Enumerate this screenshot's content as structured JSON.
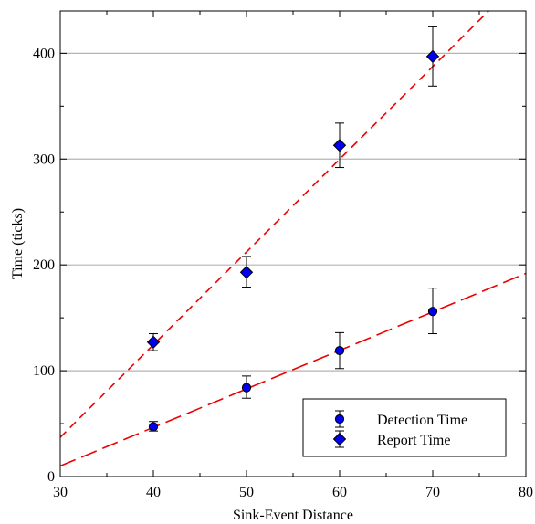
{
  "chart_data": {
    "type": "scatter",
    "title": "",
    "xlabel": "Sink-Event Distance",
    "ylabel": "Time (ticks)",
    "xlim": [
      30,
      80
    ],
    "ylim": [
      0,
      440
    ],
    "xticks": [
      30,
      40,
      50,
      60,
      70,
      80
    ],
    "yticks": [
      0,
      100,
      200,
      300,
      400
    ],
    "grid": "horizontal",
    "legend_position": "bottom-right",
    "series": [
      {
        "name": "Detection Time",
        "marker": "circle",
        "color": "#0000ee",
        "x": [
          40,
          50,
          60,
          70
        ],
        "y": [
          47,
          84,
          119,
          156
        ],
        "err_low": [
          43,
          74,
          102,
          135
        ],
        "err_high": [
          52,
          95,
          136,
          178
        ]
      },
      {
        "name": "Report Time",
        "marker": "diamond",
        "color": "#0000ee",
        "x": [
          40,
          50,
          60,
          70
        ],
        "y": [
          127,
          193,
          313,
          397
        ],
        "err_low": [
          119,
          179,
          292,
          369
        ],
        "err_high": [
          135,
          208,
          334,
          425
        ]
      }
    ],
    "fits": [
      {
        "series": "Detection Time",
        "x": [
          30,
          80
        ],
        "y": [
          10,
          192
        ],
        "color": "#ee0000",
        "dash": "long"
      },
      {
        "series": "Report Time",
        "x": [
          30,
          76
        ],
        "y": [
          37,
          440
        ],
        "color": "#ee0000",
        "dash": "short"
      }
    ]
  }
}
